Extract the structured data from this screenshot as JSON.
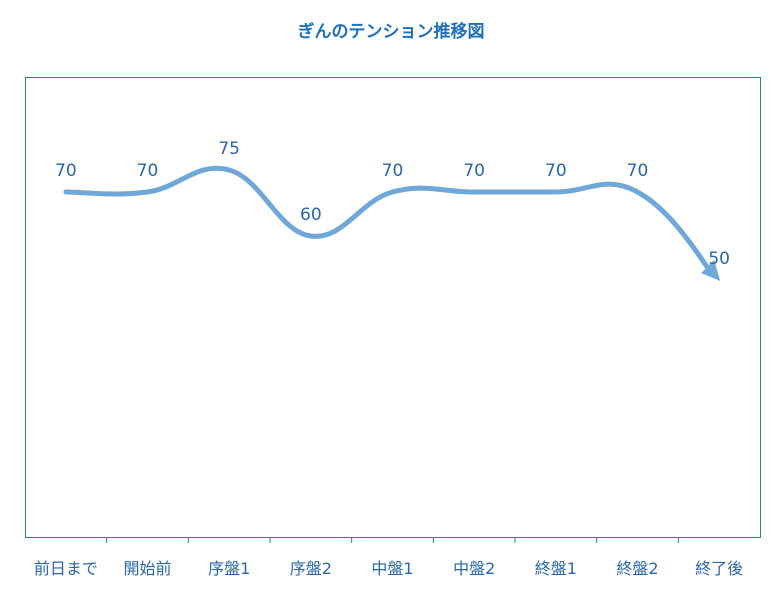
{
  "chart_data": {
    "type": "line",
    "title": "ぎんのテンション推移図",
    "categories": [
      "前日まで",
      "開始前",
      "序盤1",
      "序盤2",
      "中盤1",
      "中盤2",
      "終盤1",
      "終盤2",
      "終了後"
    ],
    "values": [
      70,
      70,
      75,
      60,
      70,
      70,
      70,
      70,
      50
    ],
    "xlabel": "",
    "ylabel": "",
    "ylim": [
      0,
      100
    ],
    "grid": false,
    "legend": "none",
    "line_color": "#6fa8d8",
    "label_color": "#2a66a8",
    "title_color": "#1f6fb8",
    "axis_color": "#2f7f8f",
    "smooth": true,
    "end_arrow": true
  }
}
